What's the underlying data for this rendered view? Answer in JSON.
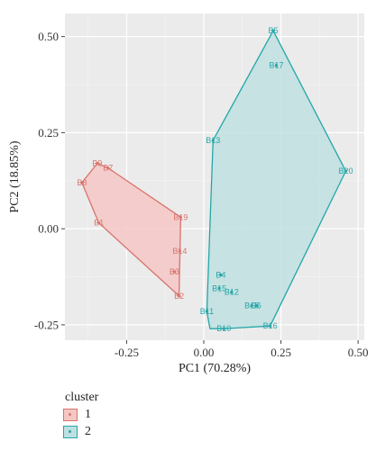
{
  "chart_data": {
    "type": "scatter",
    "xlabel": "PC1 (70.28%)",
    "ylabel": "PC2 (18.85%)",
    "xlim": [
      -0.45,
      0.52
    ],
    "ylim": [
      -0.29,
      0.56
    ],
    "x_ticks": [
      -0.25,
      0.0,
      0.25,
      0.5
    ],
    "x_tick_labels": [
      "-0.25",
      "0.00",
      "0.25",
      "0.50"
    ],
    "y_ticks": [
      -0.25,
      0.0,
      0.25,
      0.5
    ],
    "y_tick_labels": [
      "-0.25",
      "0.00",
      "0.25",
      "0.50"
    ],
    "grid": true,
    "legend": {
      "title": "cluster",
      "placement": "bottom-left",
      "entries": [
        {
          "label": "1",
          "fill": "#f4c7c5",
          "stroke": "#d9736c"
        },
        {
          "label": "2",
          "fill": "#bfe0e1",
          "stroke": "#24a6a8"
        }
      ]
    },
    "series": [
      {
        "name": "1",
        "color": "#d9736c",
        "fill": "#f4c7c5",
        "points": [
          {
            "label": "B9",
            "x": -0.345,
            "y": 0.17
          },
          {
            "label": "B7",
            "x": -0.31,
            "y": 0.158
          },
          {
            "label": "B8",
            "x": -0.395,
            "y": 0.12
          },
          {
            "label": "B1",
            "x": -0.34,
            "y": 0.015
          },
          {
            "label": "B19",
            "x": -0.075,
            "y": 0.03
          },
          {
            "label": "B14",
            "x": -0.078,
            "y": -0.058
          },
          {
            "label": "B3",
            "x": -0.095,
            "y": -0.112
          },
          {
            "label": "B2",
            "x": -0.08,
            "y": -0.175
          }
        ],
        "hull": [
          [
            -0.345,
            0.17
          ],
          [
            -0.31,
            0.158
          ],
          [
            -0.075,
            0.03
          ],
          [
            -0.08,
            -0.175
          ],
          [
            -0.34,
            0.015
          ],
          [
            -0.395,
            0.12
          ]
        ]
      },
      {
        "name": "2",
        "color": "#24a6a8",
        "fill": "#bfe0e1",
        "points": [
          {
            "label": "B5",
            "x": 0.225,
            "y": 0.515
          },
          {
            "label": "B17",
            "x": 0.235,
            "y": 0.425
          },
          {
            "label": "B13",
            "x": 0.03,
            "y": 0.23
          },
          {
            "label": "B20",
            "x": 0.46,
            "y": 0.15
          },
          {
            "label": "B4",
            "x": 0.055,
            "y": -0.12
          },
          {
            "label": "B15",
            "x": 0.05,
            "y": -0.155
          },
          {
            "label": "B12",
            "x": 0.09,
            "y": -0.165
          },
          {
            "label": "B6",
            "x": 0.17,
            "y": -0.2
          },
          {
            "label": "B18",
            "x": 0.155,
            "y": -0.2
          },
          {
            "label": "B11",
            "x": 0.01,
            "y": -0.215
          },
          {
            "label": "B16",
            "x": 0.215,
            "y": -0.253
          },
          {
            "label": "B10",
            "x": 0.065,
            "y": -0.26
          }
        ],
        "hull": [
          [
            0.225,
            0.515
          ],
          [
            0.46,
            0.15
          ],
          [
            0.215,
            -0.253
          ],
          [
            0.065,
            -0.26
          ],
          [
            0.02,
            -0.26
          ],
          [
            0.01,
            -0.215
          ],
          [
            0.03,
            0.23
          ]
        ]
      }
    ]
  }
}
